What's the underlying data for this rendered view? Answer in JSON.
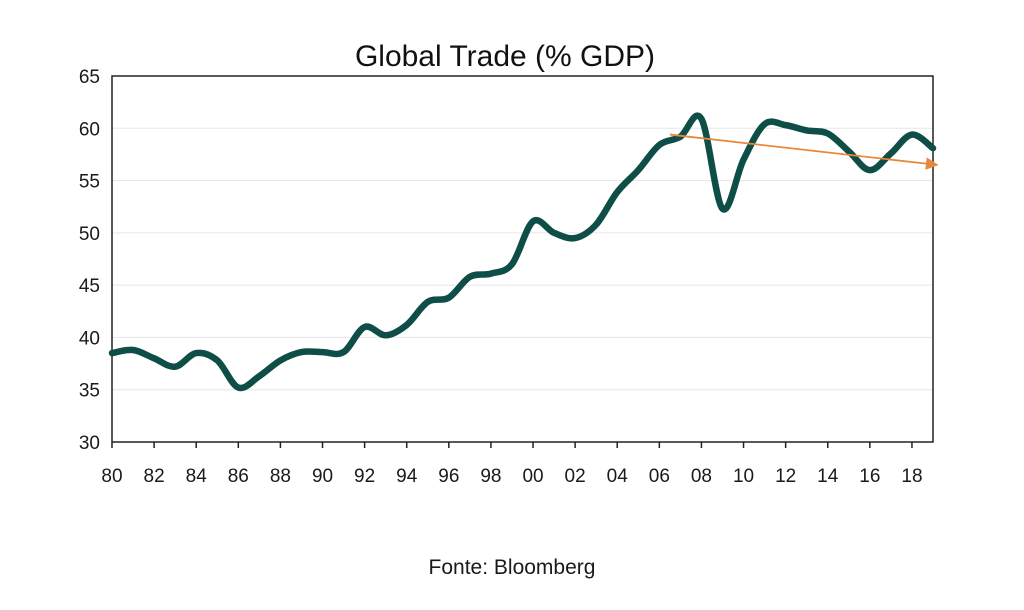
{
  "chart_data": {
    "type": "line",
    "title": "Global Trade (% GDP)",
    "xlabel": "",
    "ylabel": "",
    "xlim": [
      1980,
      2019
    ],
    "ylim": [
      30,
      65
    ],
    "yticks": [
      30,
      35,
      40,
      45,
      50,
      55,
      60,
      65
    ],
    "xtick_values": [
      1980,
      1982,
      1984,
      1986,
      1988,
      1990,
      1992,
      1994,
      1996,
      1998,
      2000,
      2002,
      2004,
      2006,
      2008,
      2010,
      2012,
      2014,
      2016,
      2018
    ],
    "xtick_labels": [
      "80",
      "82",
      "84",
      "86",
      "88",
      "90",
      "92",
      "94",
      "96",
      "98",
      "00",
      "02",
      "04",
      "06",
      "08",
      "10",
      "12",
      "14",
      "16",
      "18"
    ],
    "grid": "horizontal",
    "series": [
      {
        "color": "#0f4d47",
        "x": [
          1980,
          1981,
          1982,
          1983,
          1984,
          1985,
          1986,
          1987,
          1988,
          1989,
          1990,
          1991,
          1992,
          1993,
          1994,
          1995,
          1996,
          1997,
          1998,
          1999,
          2000,
          2001,
          2002,
          2003,
          2004,
          2005,
          2006,
          2007,
          2008,
          2009,
          2010,
          2011,
          2012,
          2013,
          2014,
          2015,
          2016,
          2017,
          2018,
          2019
        ],
        "y": [
          38.5,
          38.8,
          38.0,
          37.2,
          38.5,
          37.8,
          35.2,
          36.3,
          37.8,
          38.6,
          38.6,
          38.6,
          41.0,
          40.2,
          41.2,
          43.4,
          43.8,
          45.8,
          46.1,
          47.0,
          51.1,
          50.0,
          49.5,
          50.8,
          53.9,
          56.0,
          58.4,
          59.2,
          60.9,
          52.3,
          57.0,
          60.4,
          60.3,
          59.8,
          59.5,
          57.8,
          56.0,
          57.6,
          59.4,
          58.1
        ]
      }
    ],
    "annotations": [
      {
        "type": "trend-arrow",
        "color": "#e8883a",
        "from": [
          2006.5,
          59.4
        ],
        "to": [
          2019.2,
          56.5
        ]
      }
    ]
  },
  "source_note": "Fonte: Bloomberg"
}
